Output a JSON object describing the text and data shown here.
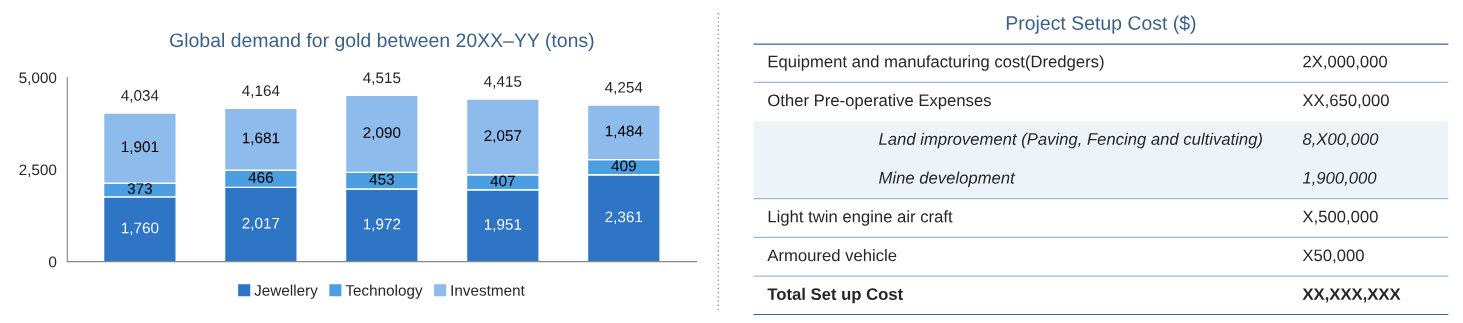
{
  "chart_data": [
    {
      "type": "bar",
      "title": "Global demand for gold between 20XX–YY (tons)",
      "categories": [
        null,
        null,
        null,
        null,
        null
      ],
      "stacked": true,
      "series": [
        {
          "name": "Jewellery",
          "color": "#2e75c6",
          "values": [
            1760,
            2017,
            1972,
            1951,
            2361
          ],
          "value_labels": [
            "1,760",
            "2,017",
            "1,972",
            "1,951",
            "2,361"
          ]
        },
        {
          "name": "Technology",
          "color": "#4b9fe1",
          "values": [
            373,
            466,
            453,
            407,
            409
          ],
          "value_labels": [
            "373",
            "466",
            "453",
            "407",
            "409"
          ]
        },
        {
          "name": "Investment",
          "color": "#8dbbec",
          "values": [
            1901,
            1681,
            2090,
            2057,
            1484
          ],
          "value_labels": [
            "1,901",
            "1,681",
            "2,090",
            "2,057",
            "1,484"
          ]
        }
      ],
      "totals": [
        "4,034",
        "4,164",
        "4,515",
        "4,415",
        "4,254"
      ],
      "ylim": [
        0,
        5000
      ],
      "yticks": [
        0,
        {
          "value": 2500,
          "label": "2,500"
        },
        {
          "value": 5000,
          "label": "5,000"
        }
      ],
      "grid": false,
      "legend": "bottom"
    },
    {
      "type": "other",
      "title": "Project Setup Cost ($)",
      "annotations": [
        "Equipment and manufacturing cost(Dredgers)",
        "2X,000,000",
        "Other Pre-operative Expenses",
        "XX,650,000",
        "Land improvement (Paving, Fencing and cultivating)",
        "8,X00,000",
        "Mine development",
        "1,900,000",
        "Light twin engine air craft",
        "X,500,000",
        "Armoured vehicle",
        "X50,000",
        "Total Set up Cost",
        "XX,XXX,XXX"
      ]
    }
  ]
}
